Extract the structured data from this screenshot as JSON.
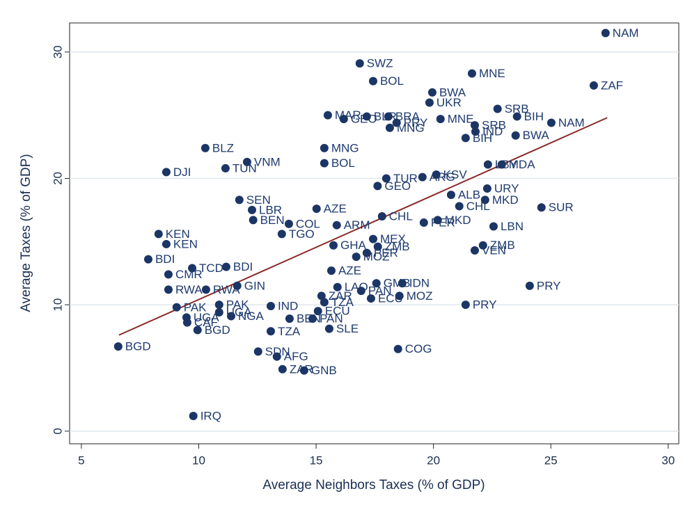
{
  "chart_data": {
    "type": "scatter",
    "xlabel": "Average Neighbors Taxes (% of GDP)",
    "ylabel": "Average Taxes (% of GDP)",
    "xlim": [
      4.5,
      30.45
    ],
    "ylim": [
      -1,
      32.3
    ],
    "xticks": [
      5,
      10,
      15,
      20,
      25,
      30
    ],
    "yticks": [
      0,
      10,
      20,
      30
    ],
    "grid": true,
    "series": [
      {
        "color": "#1b3565",
        "point_labels": [
          "NAM",
          "ZAF",
          "SWZ",
          "BOL",
          "MNE",
          "BWA",
          "UKR",
          "SRB",
          "BIH",
          "NAM",
          "BWA",
          "MAR",
          "GEO",
          "BLR",
          "BRA",
          "PRY",
          "MNG",
          "MNE",
          "SRB",
          "IND",
          "BIH",
          "BLZ",
          "VNM",
          "TUN",
          "DJI",
          "MNG",
          "BOL",
          "LBY",
          "MDA",
          "TUR",
          "ARG",
          "KSV",
          "URY",
          "SUR",
          "ALB",
          "MKD",
          "CHL",
          "PER",
          "MKD",
          "LBN",
          "ZMB",
          "VEN",
          "PRY",
          "PRY",
          "SEN",
          "LBR",
          "BEN",
          "GEO",
          "AZE",
          "COL",
          "TGO",
          "ARM",
          "CHL",
          "MEX",
          "GHA",
          "ZMB",
          "PER",
          "MOZ",
          "AZE",
          "GMB",
          "IDN",
          "MOZ",
          "ECU",
          "PAN",
          "LAO",
          "ZAR",
          "TZA",
          "ECU",
          "PAN",
          "BEN",
          "SLE",
          "TZA",
          "SDN",
          "AFG",
          "ZAR",
          "GNB",
          "COG",
          "IRQ",
          "BGD",
          "BGD",
          "CAF",
          "UGA",
          "PAK",
          "PAK",
          "UGA",
          "NGA",
          "IND",
          "RWA",
          "RWA",
          "GIN",
          "CMR",
          "TCD",
          "BDI",
          "BDI",
          "KEN",
          "KEN"
        ],
        "x": [
          27.33,
          26.83,
          16.86,
          17.43,
          21.64,
          19.95,
          19.83,
          22.73,
          23.56,
          25.02,
          23.5,
          15.5,
          16.18,
          17.16,
          18.08,
          18.43,
          18.14,
          20.3,
          21.76,
          21.79,
          21.37,
          10.28,
          12.06,
          11.14,
          8.62,
          15.35,
          15.35,
          22.32,
          22.91,
          17.99,
          19.53,
          20.12,
          22.29,
          24.6,
          20.75,
          22.2,
          21.1,
          19.59,
          20.18,
          22.56,
          22.11,
          21.76,
          24.1,
          21.37,
          11.73,
          12.27,
          12.32,
          17.62,
          15.02,
          13.84,
          13.54,
          15.88,
          17.81,
          17.43,
          15.74,
          17.63,
          17.16,
          16.71,
          15.65,
          17.57,
          18.67,
          18.55,
          17.34,
          16.92,
          15.91,
          15.23,
          15.35,
          15.08,
          14.85,
          13.87,
          15.56,
          13.07,
          12.53,
          13.33,
          13.57,
          14.49,
          18.49,
          9.77,
          6.57,
          9.95,
          9.51,
          9.48,
          9.06,
          10.87,
          10.87,
          11.38,
          13.07,
          8.71,
          10.31,
          11.64,
          8.71,
          9.72,
          11.17,
          7.85,
          8.29,
          8.62
        ],
        "values": [
          31.5,
          27.35,
          29.1,
          27.7,
          28.3,
          26.8,
          26.0,
          25.5,
          24.9,
          24.4,
          23.4,
          25.0,
          24.7,
          24.9,
          24.9,
          24.4,
          24.0,
          24.7,
          24.2,
          23.7,
          23.2,
          22.4,
          21.3,
          20.8,
          20.5,
          22.4,
          21.2,
          21.1,
          21.1,
          20.0,
          20.1,
          20.3,
          19.2,
          17.7,
          18.7,
          18.3,
          17.8,
          16.5,
          16.7,
          16.2,
          14.7,
          14.3,
          11.5,
          10.0,
          18.3,
          17.5,
          16.7,
          19.4,
          17.6,
          16.4,
          15.6,
          16.3,
          17.0,
          15.2,
          14.7,
          14.6,
          14.1,
          13.8,
          12.7,
          11.7,
          11.7,
          10.7,
          10.5,
          11.1,
          11.4,
          10.7,
          10.2,
          9.5,
          8.9,
          8.9,
          8.1,
          7.9,
          6.3,
          5.9,
          4.9,
          4.8,
          6.5,
          1.2,
          6.7,
          8.0,
          8.6,
          9.0,
          9.8,
          10.0,
          9.4,
          9.1,
          9.9,
          11.2,
          11.2,
          11.5,
          12.4,
          12.9,
          13.0,
          13.6,
          15.6,
          14.8
        ]
      }
    ],
    "fit": {
      "color": "#8b2a2a",
      "x": [
        6.6,
        27.4
      ],
      "y": [
        7.6,
        24.8
      ]
    }
  }
}
